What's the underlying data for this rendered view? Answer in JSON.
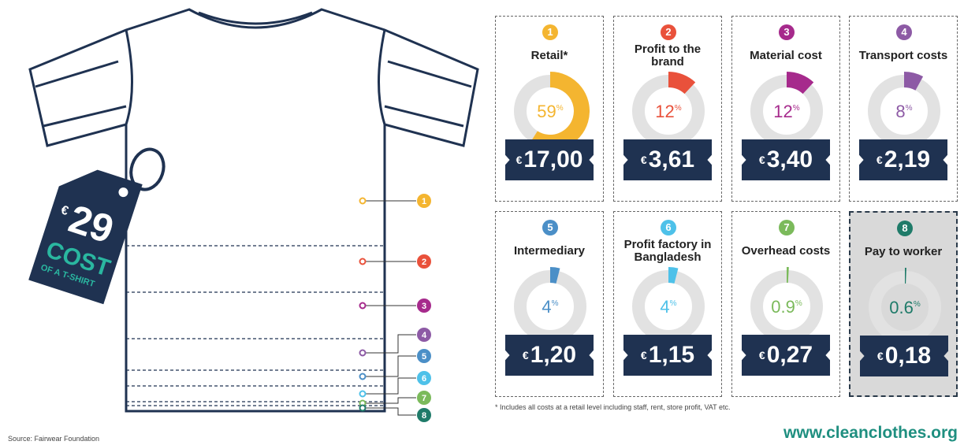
{
  "tag": {
    "currency": "€",
    "amount": "29",
    "title": "COST",
    "subtitle": "OF A T-SHIRT"
  },
  "percent_sign": "%",
  "currency": "€",
  "cards": [
    {
      "number": 1,
      "label": "Retail*",
      "percent": 59,
      "price": "17,00",
      "color": "#f4b530"
    },
    {
      "number": 2,
      "label": "Profit to the brand",
      "percent": 12,
      "price": "3,61",
      "color": "#e9513b"
    },
    {
      "number": 3,
      "label": "Material cost",
      "percent": 12,
      "price": "3,40",
      "color": "#a62a8c"
    },
    {
      "number": 4,
      "label": "Transport costs",
      "percent": 8,
      "price": "2,19",
      "color": "#8d5aa5"
    },
    {
      "number": 5,
      "label": "Intermediary",
      "percent": 4,
      "price": "1,20",
      "color": "#4b8fc7"
    },
    {
      "number": 6,
      "label": "Profit factory in Bangladesh",
      "percent": 4,
      "price": "1,15",
      "color": "#4ec1e9"
    },
    {
      "number": 7,
      "label": "Overhead costs",
      "percent": 0.9,
      "price": "0,27",
      "color": "#7bba5b"
    },
    {
      "number": 8,
      "label": "Pay to worker",
      "percent": 0.6,
      "price": "0,18",
      "color": "#1f7b69"
    }
  ],
  "footnote": "* Includes all costs at a retail level including staff, rent, store profit, VAT etc.",
  "source": "Source: Fairwear Foundation",
  "url": "www.cleanclothes.org"
}
